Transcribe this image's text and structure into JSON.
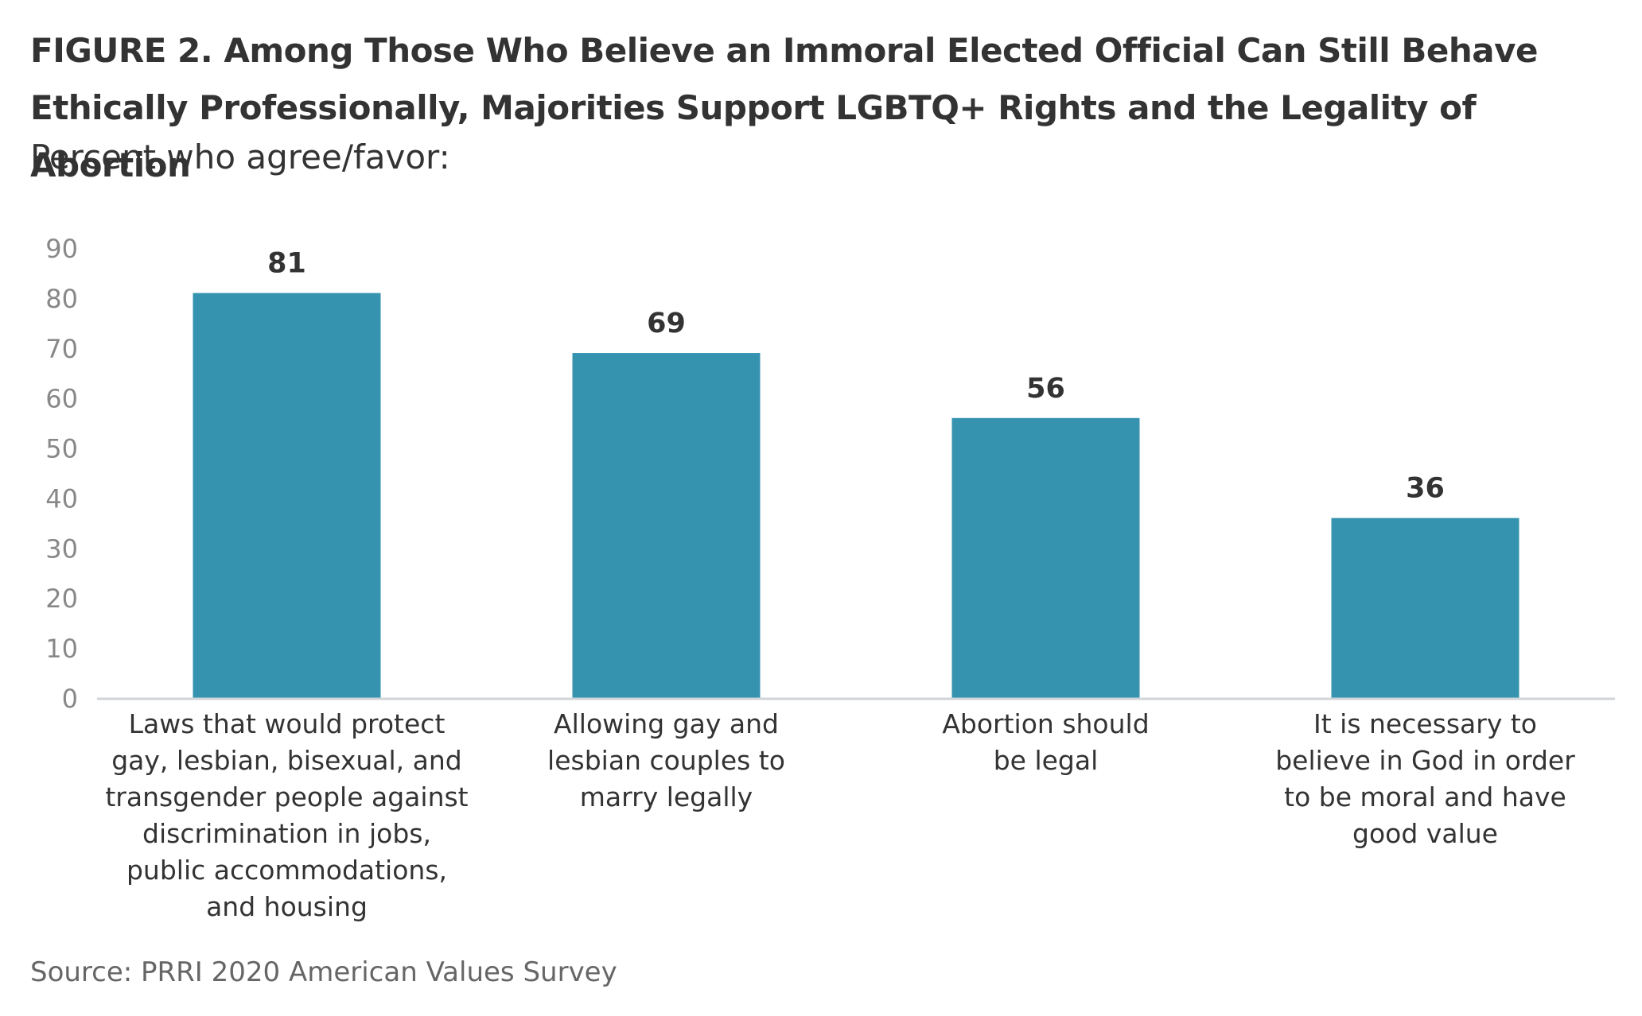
{
  "chart_data": {
    "type": "bar",
    "title": "FIGURE 2. Among Those Who Believe an Immoral Elected Official Can Still Behave Ethically Professionally, Majorities Support LGBTQ+ Rights and the Legality of Abortion",
    "subtitle": "Percent who agree/favor:",
    "categories": [
      "Laws that would protect gay, lesbian, bisexual, and transgender people against discrimination in jobs, public accommodations, and housing",
      "Allowing gay and lesbian couples to marry legally",
      "Abortion should be legal",
      "It is necessary to believe in God in order to be moral and have good value"
    ],
    "values": [
      81,
      69,
      56,
      36
    ],
    "data_labels": [
      "81",
      "69",
      "56",
      "36"
    ],
    "ylim": [
      0,
      90
    ],
    "yticks": [
      0,
      10,
      20,
      30,
      40,
      50,
      60,
      70,
      80,
      90
    ],
    "ytick_labels": [
      "0",
      "10",
      "20",
      "30",
      "40",
      "50",
      "60",
      "70",
      "80",
      "90"
    ],
    "xlabel": "",
    "ylabel": "",
    "grid": false,
    "legend": "none",
    "bar_color": "#3593b0",
    "axis_color": "#d0d4d8",
    "tick_color": "#888888"
  },
  "source": "Source: PRRI 2020 American Values Survey"
}
